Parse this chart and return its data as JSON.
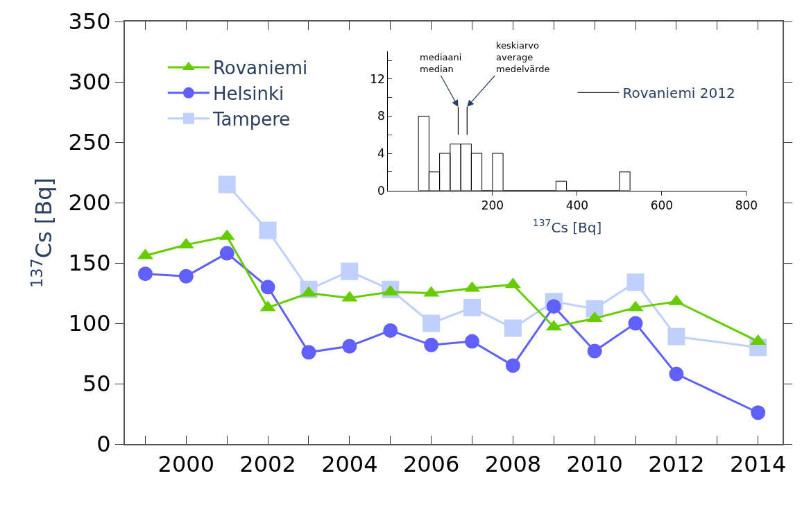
{
  "chart_data": [
    {
      "type": "line",
      "ylabel": "$^{137}$Cs [Bq]",
      "x": [
        1999,
        2000,
        2001,
        2002,
        2003,
        2004,
        2005,
        2006,
        2007,
        2008,
        2009,
        2010,
        2011,
        2012,
        2014
      ],
      "series": [
        {
          "name": "Rovaniemi",
          "color": "#66cc00",
          "marker": "triangle",
          "values": [
            156,
            165,
            172,
            113,
            125,
            121,
            126,
            125,
            129,
            132,
            97,
            104,
            113,
            118,
            85
          ]
        },
        {
          "name": "Helsinki",
          "color": "#6060ff",
          "marker": "circle",
          "values": [
            141,
            139,
            158,
            130,
            76,
            81,
            94,
            82,
            85,
            65,
            114,
            77,
            100,
            58,
            26
          ]
        },
        {
          "name": "Tampere",
          "color": "#c0d0fc",
          "marker": "square",
          "values": [
            null,
            null,
            215,
            177,
            128,
            143,
            128,
            100,
            113,
            96,
            118,
            112,
            134,
            89,
            80
          ]
        }
      ],
      "xlim": [
        1998.5,
        2014.6
      ],
      "xticks": [
        {
          "value": 1999,
          "label": null
        },
        2000,
        {
          "value": 2001,
          "label": null
        },
        2002,
        {
          "value": 2003,
          "label": null
        },
        2004,
        {
          "value": 2005,
          "label": null
        },
        2006,
        {
          "value": 2007,
          "label": null
        },
        2008,
        {
          "value": 2009,
          "label": null
        },
        2010,
        {
          "value": 2011,
          "label": null
        },
        2012,
        {
          "value": 2013,
          "label": null
        },
        2014
      ],
      "ylim": [
        0,
        350
      ],
      "yticks": [
        0,
        50,
        100,
        150,
        200,
        250,
        300,
        350
      ],
      "legend": "top left"
    },
    {
      "type": "histogram",
      "xlabel": "$^{137}$Cs [Bq]",
      "bins": [
        25,
        50,
        75,
        100,
        125,
        150,
        175,
        200,
        225,
        250,
        275,
        300,
        325,
        350,
        375,
        400,
        425,
        450,
        475,
        500,
        525
      ],
      "series": [
        {
          "name": "Rovaniemi 2012",
          "color": "#000000",
          "values": [
            8,
            2,
            4,
            5,
            5,
            4,
            0,
            4,
            0,
            0,
            0,
            0,
            0,
            1,
            0,
            0,
            0,
            0,
            0,
            2
          ]
        }
      ],
      "xlim": [
        -47,
        800
      ],
      "xticks": [
        200,
        400,
        600,
        800
      ],
      "ylim": [
        0,
        15
      ],
      "yticks": [
        0,
        {
          "value": 2,
          "label": null
        },
        4,
        {
          "value": 6,
          "label": null
        },
        8,
        {
          "value": 10,
          "label": null
        },
        12,
        {
          "value": 14,
          "label": null
        }
      ],
      "ref_lines": [
        {
          "axis": "x",
          "value": 119,
          "label": "mediaani\nmedian"
        },
        {
          "axis": "x",
          "value": 140,
          "label": "keskiarvo\naverage\nmedelvärde"
        }
      ],
      "legend": "right"
    }
  ]
}
